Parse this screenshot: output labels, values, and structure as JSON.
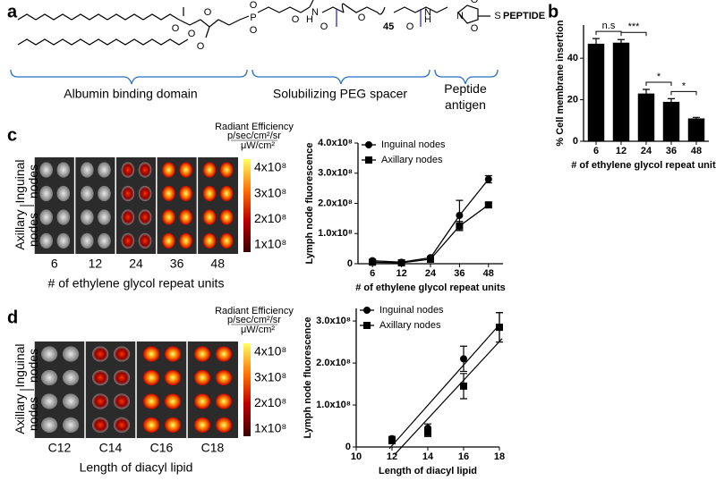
{
  "figure": {
    "panel_labels": [
      "a",
      "b",
      "c",
      "d"
    ],
    "panel_a": {
      "atoms": [
        "O",
        "O",
        "O",
        "O",
        "P",
        "O",
        "O",
        "O",
        "H",
        "N",
        "O",
        "O",
        "H",
        "N",
        "O",
        "O",
        "O",
        "N",
        "S"
      ],
      "peg_repeat": "45",
      "peptide": "PEPTIDE",
      "domains": [
        "Albumin binding domain",
        "Solubilizing PEG spacer",
        "Peptide antigen"
      ]
    },
    "colorbar": {
      "title": "Radiant Efficiency",
      "units": [
        "p/sec/cm²/sr",
        "μW/cm²"
      ],
      "labels": [
        "4x10⁸",
        "3x10⁸",
        "2x10⁸",
        "1x10⁸"
      ]
    },
    "panel_c": {
      "rows": [
        "Inguinal nodes",
        "Axillary nodes"
      ],
      "columns": [
        "6",
        "12",
        "24",
        "36",
        "48"
      ],
      "x_label": "# of ethylene glycol repeat units"
    },
    "panel_d": {
      "rows": [
        "Inguinal nodes",
        "Axillary nodes"
      ],
      "columns": [
        "C12",
        "C14",
        "C16",
        "C18"
      ],
      "x_label": "Length of diacyl lipid"
    }
  },
  "chart_data": [
    {
      "type": "bar",
      "y_label": "% Cell membrane insertion",
      "x_label": "# of ethylene glycol repeat units",
      "categories": [
        "6",
        "12",
        "24",
        "36",
        "48"
      ],
      "values": [
        47,
        47.5,
        23,
        19,
        11
      ],
      "errors": [
        2.5,
        1.5,
        2,
        1.5,
        0.5
      ],
      "color": "#000000",
      "ylim": [
        0,
        56
      ],
      "yticks": [
        0,
        20,
        40
      ],
      "annotations": [
        "n.s",
        "***",
        "*",
        "*"
      ]
    },
    {
      "type": "line",
      "y_label": "Lymph node fluorescence",
      "x_label": "# of ethylene glycol repeat units",
      "categories": [
        "6",
        "12",
        "24",
        "36",
        "48"
      ],
      "series": [
        {
          "name": "Inguinal nodes",
          "color": "#000000",
          "marker": "circle",
          "values": [
            10000000,
            5000000,
            20000000,
            160000000,
            280000000
          ],
          "errors": [
            3000000,
            2000000,
            5000000,
            50000000,
            12000000
          ]
        },
        {
          "name": "Axillary nodes",
          "color": "#000000",
          "marker": "square",
          "values": [
            5000000,
            3000000,
            15000000,
            125000000,
            195000000
          ],
          "errors": [
            2000000,
            2000000,
            5000000,
            15000000,
            7000000
          ]
        }
      ],
      "ylim": [
        0,
        400000000
      ],
      "yticks": [
        0,
        {
          "value": 100000000,
          "label": "1.0x10⁸"
        },
        {
          "value": 200000000,
          "label": "2.0x10⁸"
        },
        {
          "value": 300000000,
          "label": "3.0x10⁸"
        },
        {
          "value": 400000000,
          "label": "4.0x10⁸"
        }
      ],
      "legend": "top-left"
    },
    {
      "type": "scatter",
      "y_label": "Lymph node fluorescence",
      "x_label": "Length of diacyl lipid",
      "series": [
        {
          "name": "Inguinal nodes",
          "color": "#000000",
          "marker": "circle",
          "x": [
            12,
            14,
            16,
            18
          ],
          "values": [
            20000000,
            45000000,
            210000000,
            285000000
          ],
          "errors": [
            5000000,
            10000000,
            30000000,
            35000000
          ]
        },
        {
          "name": "Axillary nodes",
          "color": "#000000",
          "marker": "square",
          "x": [
            12,
            14,
            16,
            18
          ],
          "values": [
            15000000,
            35000000,
            145000000,
            285000000
          ],
          "errors": [
            5000000,
            10000000,
            30000000,
            35000000
          ]
        }
      ],
      "xlim": [
        10,
        18
      ],
      "xticks": [
        10,
        12,
        14,
        16,
        18
      ],
      "ylim": [
        0,
        330000000
      ],
      "yticks": [
        0,
        {
          "value": 100000000,
          "label": "1.0x10⁸"
        },
        {
          "value": 200000000,
          "label": "2.0x10⁸"
        },
        {
          "value": 300000000,
          "label": "3.0x10⁸"
        }
      ],
      "fit": true,
      "legend": "top-left"
    }
  ]
}
